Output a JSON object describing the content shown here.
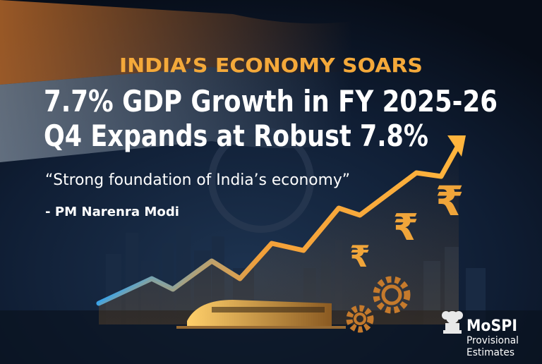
{
  "poster": {
    "kicker": "INDIA’S ECONOMY SOARS",
    "headline_line1": "7.7% GDP Growth in FY 2025-26",
    "headline_line2": "Q4 Expands at Robust 7.8%",
    "quote": "“Strong foundation of India’s economy”",
    "attribution": "- PM Narenra Modi",
    "rupee_symbols": [
      "₹",
      "₹",
      "₹"
    ],
    "logo": {
      "name": "MoSPI",
      "line1": "Provisional",
      "line2": "Estimates"
    }
  }
}
